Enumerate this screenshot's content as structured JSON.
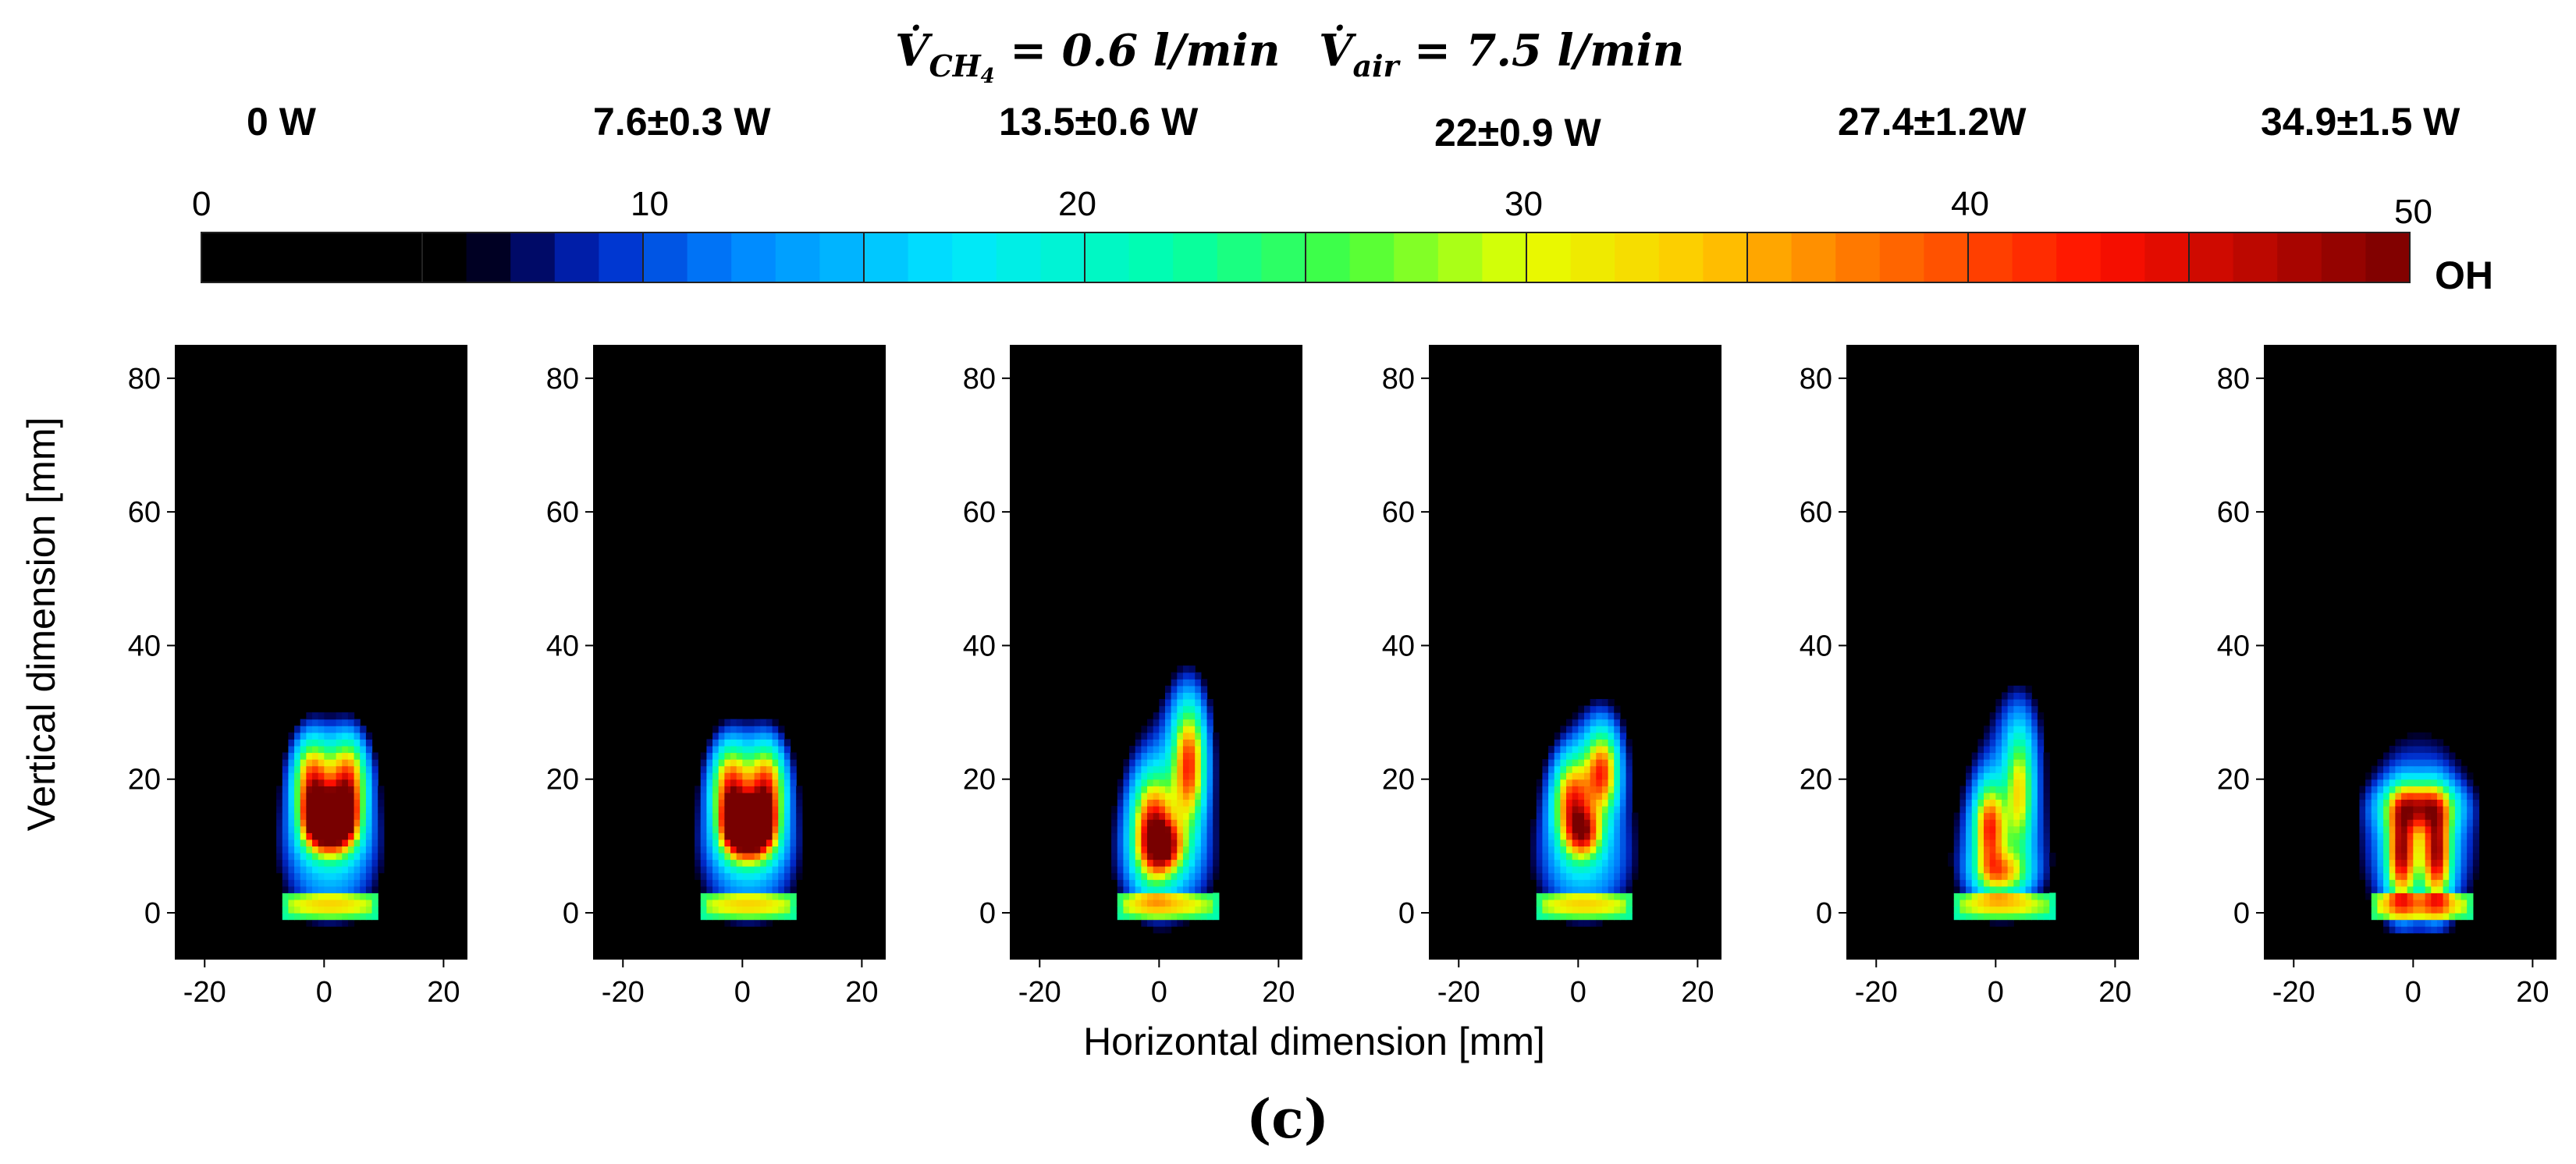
{
  "title": {
    "lhs_ch4": "V̇",
    "sub_ch4": "CH",
    "sub_ch4_index": "4",
    "ch4_rest": " = 0.6 l/min",
    "lhs_air": "V̇",
    "sub_air": "air",
    "air_rest": " = 7.5  l/min"
  },
  "caption": "(c)",
  "colorbar": {
    "label": "OH",
    "ticks": [
      "0",
      "10",
      "20",
      "30",
      "40",
      "50"
    ],
    "range": [
      0,
      50
    ],
    "segments": 50
  },
  "chart_data": {
    "type": "heatmap",
    "title": "V̇ CH4 = 0.6 l/min  V̇ air = 7.5 l/min",
    "xlabel": "Horizontal dimension [mm]",
    "ylabel": "Vertical dimension [mm]",
    "xlim": [
      -25,
      24
    ],
    "ylim": [
      -7,
      85
    ],
    "x_ticks": [
      -20,
      0,
      20
    ],
    "y_ticks": [
      0,
      20,
      40,
      60,
      80
    ],
    "x_tick_labels": [
      "-20",
      "0",
      "20"
    ],
    "y_tick_labels": [
      "0",
      "20",
      "40",
      "60",
      "80"
    ],
    "colorbar_label": "OH",
    "colorbar_range": [
      0,
      50
    ],
    "panels": [
      {
        "power": "0 W",
        "power_watts": 0,
        "base": {
          "x0": -5,
          "x1": 7,
          "y": 0
        },
        "blobs": [
          {
            "cx": 1,
            "cy": 14,
            "sx": 7,
            "sy": 12,
            "v": 10
          },
          {
            "cx": 1,
            "cy": 8,
            "sx": 6,
            "sy": 7,
            "v": 8
          },
          {
            "cx": -2,
            "cy": 20,
            "sx": 2.2,
            "sy": 4.5,
            "v": 32
          },
          {
            "cx": 4,
            "cy": 20,
            "sx": 2.2,
            "sy": 4.5,
            "v": 32
          },
          {
            "cx": 1,
            "cy": 12,
            "sx": 2.8,
            "sy": 2.4,
            "v": 32
          },
          {
            "cx": -1,
            "cy": 15,
            "sx": 1.6,
            "sy": 2.4,
            "v": 38
          },
          {
            "cx": 3,
            "cy": 15,
            "sx": 1.6,
            "sy": 2.4,
            "v": 38
          }
        ]
      },
      {
        "power": "7.6±0.3 W",
        "power_watts": 7.6,
        "base": {
          "x0": -5,
          "x1": 7,
          "y": 0
        },
        "blobs": [
          {
            "cx": 1,
            "cy": 14,
            "sx": 7,
            "sy": 12,
            "v": 10
          },
          {
            "cx": 1,
            "cy": 8,
            "sx": 6,
            "sy": 7,
            "v": 8
          },
          {
            "cx": -2,
            "cy": 19,
            "sx": 2.2,
            "sy": 4.5,
            "v": 32
          },
          {
            "cx": 4,
            "cy": 19,
            "sx": 2.2,
            "sy": 4.5,
            "v": 32
          },
          {
            "cx": 1,
            "cy": 11,
            "sx": 2.8,
            "sy": 2.4,
            "v": 32
          },
          {
            "cx": -1,
            "cy": 14,
            "sx": 1.6,
            "sy": 2.4,
            "v": 38
          },
          {
            "cx": 3,
            "cy": 14,
            "sx": 1.6,
            "sy": 2.4,
            "v": 38
          }
        ]
      },
      {
        "power": "13.5±0.6 W",
        "power_watts": 13.5,
        "base": {
          "x0": -5,
          "x1": 8,
          "y": 0
        },
        "blobs": [
          {
            "cx": 1,
            "cy": 15,
            "sx": 7,
            "sy": 13,
            "v": 10
          },
          {
            "cx": 1,
            "cy": 7,
            "sx": 6,
            "sy": 6,
            "v": 8
          },
          {
            "cx": 5,
            "cy": 27,
            "sx": 3,
            "sy": 8,
            "v": 8
          },
          {
            "cx": -1,
            "cy": 13,
            "sx": 2.4,
            "sy": 5.5,
            "v": 32
          },
          {
            "cx": 5,
            "cy": 22,
            "sx": 1.8,
            "sy": 6,
            "v": 28
          },
          {
            "cx": 1,
            "cy": 10,
            "sx": 2.2,
            "sy": 2.5,
            "v": 24
          }
        ]
      },
      {
        "power": "22±0.9 W",
        "power_watts": 22,
        "base": {
          "x0": -5,
          "x1": 7,
          "y": 0
        },
        "blobs": [
          {
            "cx": 1,
            "cy": 14,
            "sx": 7,
            "sy": 12,
            "v": 10
          },
          {
            "cx": 1,
            "cy": 7,
            "sx": 6,
            "sy": 6,
            "v": 8
          },
          {
            "cx": 4,
            "cy": 24,
            "sx": 3,
            "sy": 6,
            "v": 8
          },
          {
            "cx": -1,
            "cy": 17,
            "sx": 2.2,
            "sy": 4.5,
            "v": 30
          },
          {
            "cx": 4,
            "cy": 21,
            "sx": 1.8,
            "sy": 4,
            "v": 26
          },
          {
            "cx": 1,
            "cy": 12,
            "sx": 2,
            "sy": 2.5,
            "v": 24
          }
        ]
      },
      {
        "power": "27.4±1.2W",
        "power_watts": 27.4,
        "base": {
          "x0": -5,
          "x1": 8,
          "y": 0
        },
        "blobs": [
          {
            "cx": 1,
            "cy": 15,
            "sx": 7,
            "sy": 13,
            "v": 9
          },
          {
            "cx": 1,
            "cy": 7,
            "sx": 6,
            "sy": 6,
            "v": 7
          },
          {
            "cx": 4,
            "cy": 26,
            "sx": 3,
            "sy": 7,
            "v": 7
          },
          {
            "cx": -1,
            "cy": 13,
            "sx": 1.8,
            "sy": 4.5,
            "v": 30
          },
          {
            "cx": 4,
            "cy": 18,
            "sx": 1.6,
            "sy": 6,
            "v": 20
          },
          {
            "cx": 1,
            "cy": 6,
            "sx": 3,
            "sy": 2.2,
            "v": 20
          }
        ]
      },
      {
        "power": "34.9±1.5 W",
        "power_watts": 34.9,
        "base": {
          "x0": -5,
          "x1": 8,
          "y": 0
        },
        "blobs": [
          {
            "cx": 1,
            "cy": 13,
            "sx": 8,
            "sy": 13,
            "v": 10
          },
          {
            "cx": 1,
            "cy": 9,
            "sx": 6,
            "sy": 8,
            "v": 9
          },
          {
            "cx": 1,
            "cy": 16,
            "sx": 4,
            "sy": 2.4,
            "v": 28
          },
          {
            "cx": -2,
            "cy": 9,
            "sx": 1.6,
            "sy": 5,
            "v": 32
          },
          {
            "cx": 4,
            "cy": 9,
            "sx": 1.6,
            "sy": 5,
            "v": 32
          }
        ]
      }
    ]
  }
}
